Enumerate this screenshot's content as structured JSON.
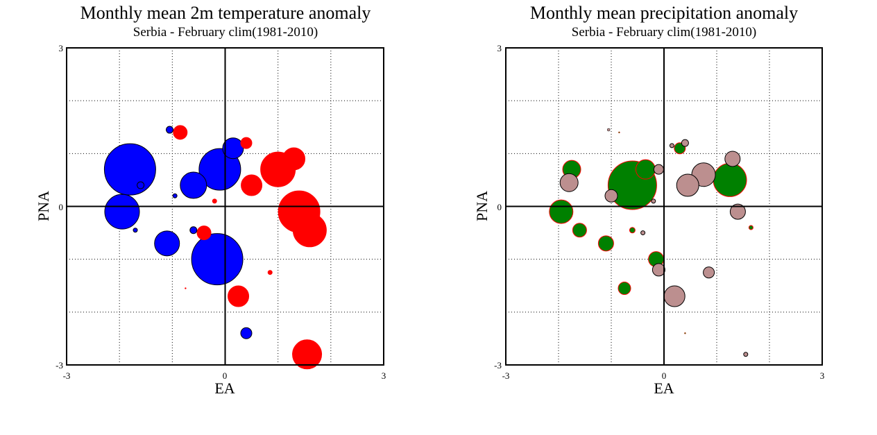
{
  "chart_data": [
    {
      "type": "scatter",
      "title": "Monthly mean 2m temperature anomaly",
      "subtitle": "Serbia - February  clim(1981-2010)",
      "xlabel": "EA",
      "ylabel": "PNA",
      "xlim": [
        -3,
        3
      ],
      "ylim": [
        -3,
        3
      ],
      "xticks": [
        "-3",
        "0",
        "3"
      ],
      "yticks": [
        "3",
        "0",
        "-3"
      ],
      "grid": "dotted",
      "colors": {
        "positive": "#ff0000",
        "negative": "#0000ff"
      },
      "points": [
        {
          "x": -1.8,
          "y": 0.7,
          "r": 37,
          "sign": "neg"
        },
        {
          "x": -0.1,
          "y": 0.7,
          "r": 30,
          "sign": "neg"
        },
        {
          "x": -1.6,
          "y": 0.4,
          "r": 5,
          "sign": "neg"
        },
        {
          "x": -0.15,
          "y": -1.0,
          "r": 37,
          "sign": "neg"
        },
        {
          "x": -1.95,
          "y": -0.1,
          "r": 25,
          "sign": "neg"
        },
        {
          "x": -0.6,
          "y": 0.4,
          "r": 19,
          "sign": "neg"
        },
        {
          "x": 0.15,
          "y": 1.1,
          "r": 15,
          "sign": "neg"
        },
        {
          "x": -1.1,
          "y": -0.7,
          "r": 18,
          "sign": "neg"
        },
        {
          "x": -1.05,
          "y": 1.45,
          "r": 5,
          "sign": "neg"
        },
        {
          "x": -0.95,
          "y": 0.2,
          "r": 3,
          "sign": "neg"
        },
        {
          "x": -1.7,
          "y": -0.45,
          "r": 3,
          "sign": "neg"
        },
        {
          "x": -0.6,
          "y": -0.45,
          "r": 5,
          "sign": "neg"
        },
        {
          "x": 0.4,
          "y": -2.4,
          "r": 8,
          "sign": "neg"
        },
        {
          "x": 1.0,
          "y": 0.7,
          "r": 25,
          "sign": "pos"
        },
        {
          "x": 1.3,
          "y": 0.9,
          "r": 16,
          "sign": "pos"
        },
        {
          "x": 1.4,
          "y": -0.1,
          "r": 30,
          "sign": "pos"
        },
        {
          "x": 1.6,
          "y": -0.45,
          "r": 24,
          "sign": "pos"
        },
        {
          "x": 0.5,
          "y": 0.4,
          "r": 15,
          "sign": "pos"
        },
        {
          "x": -0.85,
          "y": 1.4,
          "r": 10,
          "sign": "pos"
        },
        {
          "x": 0.4,
          "y": 1.2,
          "r": 8,
          "sign": "pos"
        },
        {
          "x": -0.4,
          "y": -0.5,
          "r": 10,
          "sign": "pos"
        },
        {
          "x": 0.25,
          "y": -1.7,
          "r": 15,
          "sign": "pos"
        },
        {
          "x": 1.55,
          "y": -2.8,
          "r": 21,
          "sign": "pos"
        },
        {
          "x": -0.2,
          "y": 0.1,
          "r": 3,
          "sign": "pos"
        },
        {
          "x": 0.85,
          "y": -1.25,
          "r": 3,
          "sign": "pos"
        },
        {
          "x": -0.75,
          "y": -1.55,
          "r": 1,
          "sign": "pos"
        }
      ]
    },
    {
      "type": "scatter",
      "title": "Monthly mean precipitation anomaly",
      "subtitle": "Serbia - February  clim(1981-2010)",
      "xlabel": "EA",
      "ylabel": "PNA",
      "xlim": [
        -3,
        3
      ],
      "ylim": [
        -3,
        3
      ],
      "xticks": [
        "-3",
        "0",
        "3"
      ],
      "yticks": [
        "3",
        "0",
        "-3"
      ],
      "grid": "dotted",
      "colors": {
        "positive": "#008000",
        "negative": "#bc8f8f"
      },
      "points": [
        {
          "x": -0.6,
          "y": 0.4,
          "r": 35,
          "sign": "pos"
        },
        {
          "x": 1.25,
          "y": 0.5,
          "r": 24,
          "sign": "pos"
        },
        {
          "x": -1.95,
          "y": -0.1,
          "r": 17,
          "sign": "pos"
        },
        {
          "x": -1.75,
          "y": 0.7,
          "r": 13,
          "sign": "pos"
        },
        {
          "x": -0.35,
          "y": 0.7,
          "r": 14,
          "sign": "pos"
        },
        {
          "x": -0.15,
          "y": -1.0,
          "r": 11,
          "sign": "pos"
        },
        {
          "x": -1.1,
          "y": -0.7,
          "r": 11,
          "sign": "pos"
        },
        {
          "x": -1.6,
          "y": -0.45,
          "r": 10,
          "sign": "pos"
        },
        {
          "x": 0.3,
          "y": 1.1,
          "r": 8,
          "sign": "pos"
        },
        {
          "x": -0.75,
          "y": -1.55,
          "r": 9,
          "sign": "pos"
        },
        {
          "x": -0.6,
          "y": -0.45,
          "r": 4,
          "sign": "pos"
        },
        {
          "x": 1.65,
          "y": -0.4,
          "r": 3,
          "sign": "pos"
        },
        {
          "x": 0.4,
          "y": -2.4,
          "r": 1,
          "sign": "pos"
        },
        {
          "x": -0.85,
          "y": 1.4,
          "r": 1,
          "sign": "pos"
        },
        {
          "x": 0.75,
          "y": 0.6,
          "r": 17,
          "sign": "neg"
        },
        {
          "x": 0.45,
          "y": 0.4,
          "r": 16,
          "sign": "neg"
        },
        {
          "x": -1.8,
          "y": 0.45,
          "r": 13,
          "sign": "neg"
        },
        {
          "x": 0.2,
          "y": -1.7,
          "r": 15,
          "sign": "neg"
        },
        {
          "x": 1.4,
          "y": -0.1,
          "r": 11,
          "sign": "neg"
        },
        {
          "x": 1.3,
          "y": 0.9,
          "r": 11,
          "sign": "neg"
        },
        {
          "x": -1.0,
          "y": 0.2,
          "r": 9,
          "sign": "neg"
        },
        {
          "x": -0.1,
          "y": -1.2,
          "r": 9,
          "sign": "neg"
        },
        {
          "x": 0.85,
          "y": -1.25,
          "r": 8,
          "sign": "neg"
        },
        {
          "x": -0.1,
          "y": 0.7,
          "r": 7,
          "sign": "neg"
        },
        {
          "x": 0.4,
          "y": 1.2,
          "r": 5,
          "sign": "neg"
        },
        {
          "x": 0.15,
          "y": 1.15,
          "r": 3,
          "sign": "neg"
        },
        {
          "x": -0.2,
          "y": 0.1,
          "r": 3,
          "sign": "neg"
        },
        {
          "x": -0.4,
          "y": -0.5,
          "r": 3,
          "sign": "neg"
        },
        {
          "x": 1.55,
          "y": -2.8,
          "r": 3,
          "sign": "neg"
        },
        {
          "x": -1.05,
          "y": 1.45,
          "r": 2,
          "sign": "neg"
        }
      ]
    }
  ]
}
